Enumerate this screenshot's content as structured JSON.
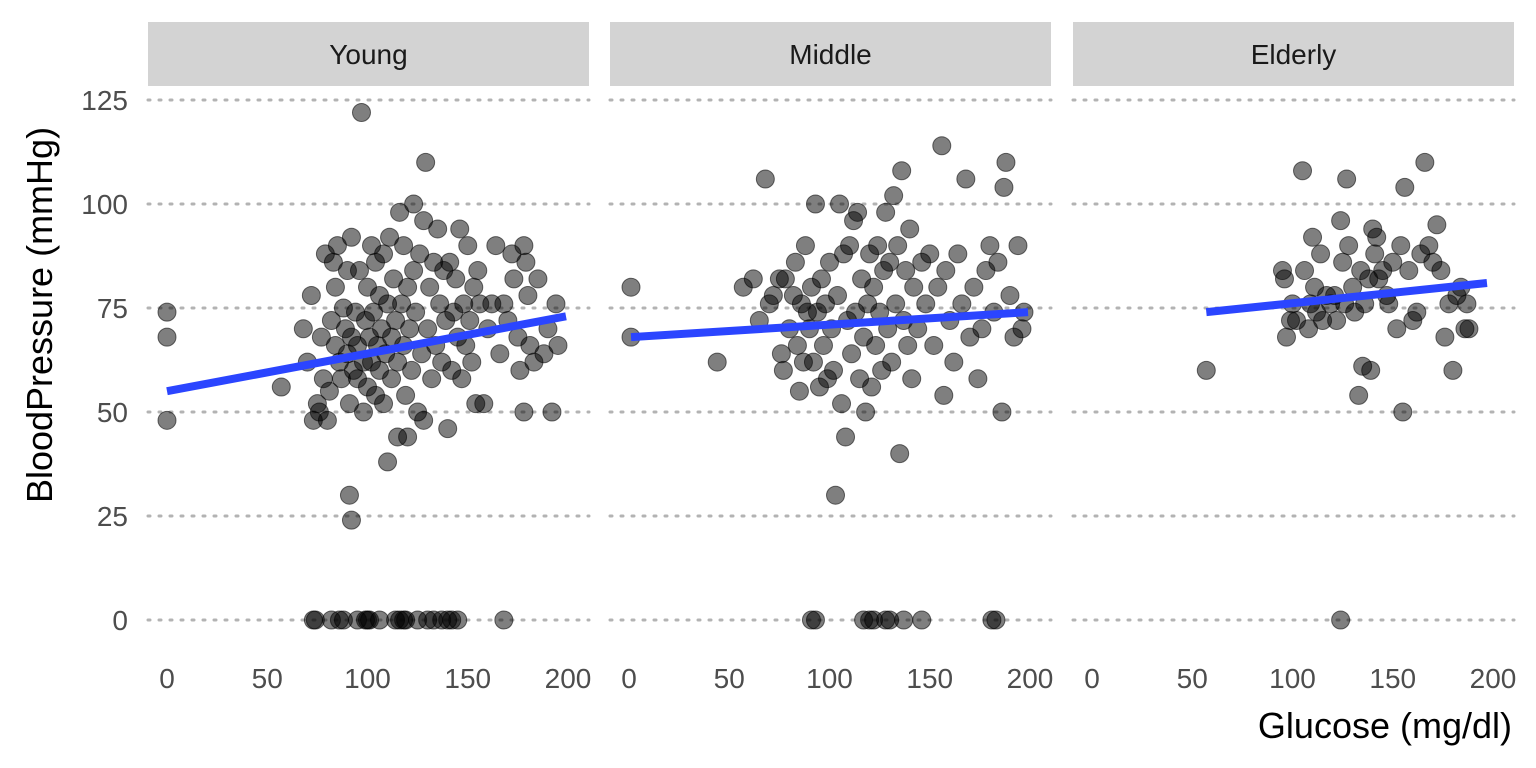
{
  "chart_data": {
    "type": "scatter",
    "xlabel": "Glucose (mg/dl)",
    "ylabel": "BloodPressure (mmHg)",
    "xlim": [
      0,
      200
    ],
    "ylim": [
      0,
      125
    ],
    "x_ticks": [
      0,
      50,
      100,
      150,
      200
    ],
    "y_ticks": [
      0,
      25,
      50,
      75,
      100,
      125
    ],
    "grid": "horizontal-dotted",
    "panels": [
      {
        "name": "Young",
        "fit": {
          "x": [
            0,
            199
          ],
          "y": [
            55,
            73
          ]
        },
        "points": [
          [
            0,
            74
          ],
          [
            0,
            68
          ],
          [
            0,
            48
          ],
          [
            57,
            56
          ],
          [
            68,
            70
          ],
          [
            70,
            62
          ],
          [
            72,
            78
          ],
          [
            73,
            48
          ],
          [
            75,
            52
          ],
          [
            76,
            50
          ],
          [
            77,
            68
          ],
          [
            78,
            58
          ],
          [
            79,
            88
          ],
          [
            80,
            48
          ],
          [
            81,
            55
          ],
          [
            82,
            72
          ],
          [
            83,
            86
          ],
          [
            84,
            80
          ],
          [
            84,
            66
          ],
          [
            85,
            90
          ],
          [
            86,
            62
          ],
          [
            87,
            58
          ],
          [
            88,
            75
          ],
          [
            89,
            70
          ],
          [
            90,
            64
          ],
          [
            90,
            84
          ],
          [
            91,
            52
          ],
          [
            92,
            92
          ],
          [
            92,
            68
          ],
          [
            93,
            60
          ],
          [
            94,
            74
          ],
          [
            95,
            58
          ],
          [
            95,
            66
          ],
          [
            96,
            84
          ],
          [
            97,
            122
          ],
          [
            98,
            62
          ],
          [
            98,
            50
          ],
          [
            99,
            72
          ],
          [
            100,
            56
          ],
          [
            100,
            80
          ],
          [
            101,
            68
          ],
          [
            102,
            90
          ],
          [
            102,
            62
          ],
          [
            103,
            74
          ],
          [
            104,
            86
          ],
          [
            104,
            54
          ],
          [
            105,
            66
          ],
          [
            106,
            78
          ],
          [
            106,
            60
          ],
          [
            107,
            70
          ],
          [
            108,
            88
          ],
          [
            108,
            52
          ],
          [
            109,
            64
          ],
          [
            110,
            76
          ],
          [
            110,
            38
          ],
          [
            111,
            92
          ],
          [
            112,
            68
          ],
          [
            112,
            58
          ],
          [
            113,
            82
          ],
          [
            114,
            72
          ],
          [
            115,
            44
          ],
          [
            115,
            62
          ],
          [
            116,
            98
          ],
          [
            117,
            76
          ],
          [
            118,
            66
          ],
          [
            118,
            90
          ],
          [
            119,
            54
          ],
          [
            120,
            80
          ],
          [
            120,
            44
          ],
          [
            121,
            70
          ],
          [
            122,
            60
          ],
          [
            123,
            100
          ],
          [
            123,
            84
          ],
          [
            124,
            74
          ],
          [
            125,
            50
          ],
          [
            126,
            88
          ],
          [
            127,
            64
          ],
          [
            128,
            96
          ],
          [
            128,
            48
          ],
          [
            129,
            110
          ],
          [
            130,
            70
          ],
          [
            131,
            80
          ],
          [
            132,
            58
          ],
          [
            133,
            86
          ],
          [
            134,
            66
          ],
          [
            135,
            94
          ],
          [
            136,
            76
          ],
          [
            137,
            62
          ],
          [
            138,
            84
          ],
          [
            139,
            72
          ],
          [
            140,
            46
          ],
          [
            141,
            86
          ],
          [
            142,
            60
          ],
          [
            143,
            74
          ],
          [
            144,
            82
          ],
          [
            145,
            68
          ],
          [
            146,
            94
          ],
          [
            147,
            58
          ],
          [
            148,
            76
          ],
          [
            149,
            66
          ],
          [
            150,
            90
          ],
          [
            151,
            72
          ],
          [
            152,
            62
          ],
          [
            153,
            80
          ],
          [
            154,
            52
          ],
          [
            155,
            84
          ],
          [
            156,
            76
          ],
          [
            158,
            52
          ],
          [
            160,
            70
          ],
          [
            162,
            76
          ],
          [
            164,
            90
          ],
          [
            166,
            64
          ],
          [
            168,
            76
          ],
          [
            170,
            72
          ],
          [
            172,
            88
          ],
          [
            173,
            82
          ],
          [
            175,
            68
          ],
          [
            176,
            60
          ],
          [
            178,
            90
          ],
          [
            178,
            50
          ],
          [
            179,
            86
          ],
          [
            180,
            78
          ],
          [
            181,
            66
          ],
          [
            183,
            62
          ],
          [
            185,
            82
          ],
          [
            188,
            64
          ],
          [
            190,
            70
          ],
          [
            192,
            50
          ],
          [
            194,
            76
          ],
          [
            195,
            66
          ],
          [
            91,
            30
          ],
          [
            92,
            24
          ],
          [
            73,
            0
          ],
          [
            74,
            0
          ],
          [
            82,
            0
          ],
          [
            86,
            0
          ],
          [
            88,
            0
          ],
          [
            95,
            0
          ],
          [
            99,
            0
          ],
          [
            100,
            0
          ],
          [
            101,
            0
          ],
          [
            106,
            0
          ],
          [
            114,
            0
          ],
          [
            116,
            0
          ],
          [
            118,
            0
          ],
          [
            119,
            0
          ],
          [
            125,
            0
          ],
          [
            130,
            0
          ],
          [
            133,
            0
          ],
          [
            137,
            0
          ],
          [
            140,
            0
          ],
          [
            142,
            0
          ],
          [
            145,
            0
          ],
          [
            168,
            0
          ]
        ]
      },
      {
        "name": "Middle",
        "fit": {
          "x": [
            1,
            199
          ],
          "y": [
            68,
            74
          ]
        },
        "points": [
          [
            1,
            80
          ],
          [
            1,
            68
          ],
          [
            44,
            62
          ],
          [
            57,
            80
          ],
          [
            62,
            82
          ],
          [
            65,
            72
          ],
          [
            68,
            106
          ],
          [
            70,
            76
          ],
          [
            72,
            78
          ],
          [
            75,
            82
          ],
          [
            76,
            64
          ],
          [
            77,
            60
          ],
          [
            78,
            82
          ],
          [
            80,
            70
          ],
          [
            82,
            78
          ],
          [
            83,
            86
          ],
          [
            84,
            66
          ],
          [
            85,
            55
          ],
          [
            86,
            76
          ],
          [
            87,
            62
          ],
          [
            88,
            90
          ],
          [
            89,
            74
          ],
          [
            90,
            70
          ],
          [
            91,
            80
          ],
          [
            92,
            62
          ],
          [
            93,
            100
          ],
          [
            94,
            74
          ],
          [
            95,
            56
          ],
          [
            96,
            82
          ],
          [
            97,
            66
          ],
          [
            98,
            76
          ],
          [
            99,
            58
          ],
          [
            100,
            86
          ],
          [
            101,
            70
          ],
          [
            102,
            60
          ],
          [
            103,
            30
          ],
          [
            104,
            78
          ],
          [
            105,
            100
          ],
          [
            106,
            52
          ],
          [
            107,
            88
          ],
          [
            108,
            44
          ],
          [
            109,
            72
          ],
          [
            110,
            90
          ],
          [
            111,
            64
          ],
          [
            112,
            96
          ],
          [
            113,
            74
          ],
          [
            114,
            98
          ],
          [
            115,
            58
          ],
          [
            116,
            82
          ],
          [
            117,
            68
          ],
          [
            118,
            50
          ],
          [
            119,
            76
          ],
          [
            120,
            88
          ],
          [
            121,
            56
          ],
          [
            122,
            80
          ],
          [
            123,
            66
          ],
          [
            124,
            90
          ],
          [
            125,
            74
          ],
          [
            126,
            60
          ],
          [
            127,
            84
          ],
          [
            128,
            98
          ],
          [
            129,
            70
          ],
          [
            130,
            86
          ],
          [
            131,
            62
          ],
          [
            132,
            102
          ],
          [
            133,
            76
          ],
          [
            134,
            90
          ],
          [
            135,
            40
          ],
          [
            136,
            108
          ],
          [
            137,
            72
          ],
          [
            138,
            84
          ],
          [
            139,
            66
          ],
          [
            140,
            94
          ],
          [
            141,
            58
          ],
          [
            142,
            80
          ],
          [
            144,
            70
          ],
          [
            146,
            86
          ],
          [
            148,
            76
          ],
          [
            150,
            88
          ],
          [
            152,
            66
          ],
          [
            154,
            80
          ],
          [
            156,
            114
          ],
          [
            157,
            54
          ],
          [
            158,
            84
          ],
          [
            160,
            72
          ],
          [
            162,
            62
          ],
          [
            164,
            88
          ],
          [
            166,
            76
          ],
          [
            168,
            106
          ],
          [
            170,
            68
          ],
          [
            172,
            80
          ],
          [
            174,
            58
          ],
          [
            176,
            70
          ],
          [
            178,
            84
          ],
          [
            180,
            90
          ],
          [
            182,
            74
          ],
          [
            184,
            86
          ],
          [
            186,
            50
          ],
          [
            187,
            104
          ],
          [
            188,
            110
          ],
          [
            190,
            78
          ],
          [
            192,
            68
          ],
          [
            194,
            90
          ],
          [
            196,
            70
          ],
          [
            197,
            74
          ],
          [
            91,
            0
          ],
          [
            93,
            0
          ],
          [
            117,
            0
          ],
          [
            120,
            0
          ],
          [
            122,
            0
          ],
          [
            128,
            0
          ],
          [
            130,
            0
          ],
          [
            137,
            0
          ],
          [
            146,
            0
          ],
          [
            181,
            0
          ],
          [
            183,
            0
          ]
        ]
      },
      {
        "name": "Elderly",
        "fit": {
          "x": [
            57,
            197
          ],
          "y": [
            74,
            81
          ]
        },
        "points": [
          [
            57,
            60
          ],
          [
            95,
            84
          ],
          [
            96,
            82
          ],
          [
            97,
            68
          ],
          [
            99,
            72
          ],
          [
            100,
            76
          ],
          [
            102,
            72
          ],
          [
            105,
            108
          ],
          [
            106,
            84
          ],
          [
            108,
            70
          ],
          [
            109,
            76
          ],
          [
            110,
            92
          ],
          [
            111,
            80
          ],
          [
            112,
            74
          ],
          [
            114,
            88
          ],
          [
            115,
            72
          ],
          [
            117,
            78
          ],
          [
            119,
            76
          ],
          [
            121,
            78
          ],
          [
            122,
            72
          ],
          [
            124,
            96
          ],
          [
            125,
            86
          ],
          [
            126,
            76
          ],
          [
            127,
            106
          ],
          [
            128,
            90
          ],
          [
            130,
            80
          ],
          [
            131,
            74
          ],
          [
            133,
            54
          ],
          [
            134,
            84
          ],
          [
            135,
            61
          ],
          [
            136,
            76
          ],
          [
            138,
            82
          ],
          [
            139,
            60
          ],
          [
            140,
            94
          ],
          [
            141,
            88
          ],
          [
            142,
            92
          ],
          [
            143,
            82
          ],
          [
            145,
            84
          ],
          [
            147,
            78
          ],
          [
            148,
            76
          ],
          [
            150,
            86
          ],
          [
            152,
            70
          ],
          [
            154,
            90
          ],
          [
            155,
            50
          ],
          [
            156,
            104
          ],
          [
            158,
            84
          ],
          [
            160,
            72
          ],
          [
            162,
            74
          ],
          [
            164,
            88
          ],
          [
            166,
            110
          ],
          [
            168,
            90
          ],
          [
            170,
            86
          ],
          [
            172,
            95
          ],
          [
            174,
            84
          ],
          [
            176,
            68
          ],
          [
            178,
            76
          ],
          [
            180,
            60
          ],
          [
            182,
            78
          ],
          [
            184,
            80
          ],
          [
            186,
            70
          ],
          [
            187,
            76
          ],
          [
            188,
            70
          ],
          [
            124,
            0
          ]
        ]
      }
    ]
  }
}
